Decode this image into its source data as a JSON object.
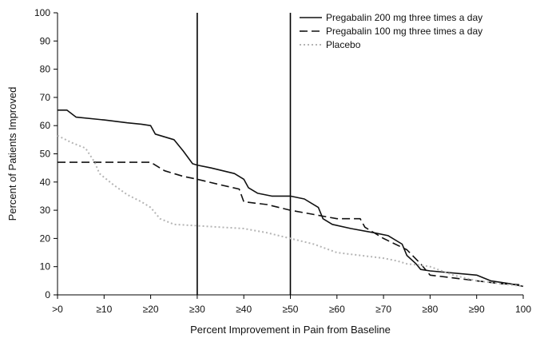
{
  "chart_data": {
    "type": "line",
    "xlabel": "Percent Improvement in Pain from Baseline",
    "ylabel": "Percent of Patients Improved",
    "xlim": [
      0,
      100
    ],
    "ylim": [
      0,
      100
    ],
    "grid": false,
    "legend_position": "top-right",
    "x_ticks": [
      {
        "value": 0,
        "label": ">0"
      },
      {
        "value": 10,
        "label": "≥10"
      },
      {
        "value": 20,
        "label": "≥20"
      },
      {
        "value": 30,
        "label": "≥30"
      },
      {
        "value": 40,
        "label": "≥40"
      },
      {
        "value": 50,
        "label": "≥50"
      },
      {
        "value": 60,
        "label": "≥60"
      },
      {
        "value": 70,
        "label": "≥70"
      },
      {
        "value": 80,
        "label": "≥80"
      },
      {
        "value": 90,
        "label": "≥90"
      },
      {
        "value": 100,
        "label": "100"
      }
    ],
    "y_ticks": [
      0,
      10,
      20,
      30,
      40,
      50,
      60,
      70,
      80,
      90,
      100
    ],
    "reference_lines_x": [
      30,
      50
    ],
    "series": [
      {
        "name": "Pregabalin 200 mg three times a day",
        "style": "solid",
        "color": "#111111",
        "x": [
          0,
          2,
          4,
          10,
          15,
          18,
          20,
          21,
          25,
          27,
          29,
          30,
          33,
          38,
          40,
          41,
          43,
          46,
          50,
          53,
          56,
          57,
          59,
          63,
          68,
          71,
          74,
          75,
          77,
          78,
          80,
          90,
          93,
          97,
          100
        ],
        "y": [
          65.5,
          65.5,
          63,
          62,
          61,
          60.5,
          60,
          57,
          55,
          51,
          46.5,
          46,
          45,
          43,
          41,
          38,
          36,
          35,
          35,
          34,
          31,
          27,
          25,
          23.5,
          22,
          21,
          18,
          14,
          11,
          9,
          8.5,
          7,
          5,
          4,
          3
        ]
      },
      {
        "name": "Pregabalin 100 mg three times a day",
        "style": "dashed",
        "color": "#111111",
        "x": [
          0,
          5,
          10,
          15,
          20,
          23,
          27,
          30,
          35,
          39,
          40,
          45,
          50,
          55,
          60,
          65,
          66,
          70,
          75,
          78,
          80,
          85,
          90,
          95,
          100
        ],
        "y": [
          47,
          47,
          47,
          47,
          47,
          44,
          42,
          41,
          39,
          37.5,
          33,
          32,
          30,
          28.5,
          27,
          27,
          24,
          20,
          16,
          11,
          7,
          6,
          5,
          4,
          3.5
        ]
      },
      {
        "name": "Placebo",
        "style": "dotted",
        "color": "#b5b5b5",
        "x": [
          0,
          3,
          6,
          8,
          9,
          12,
          15,
          18,
          20,
          22,
          25,
          30,
          35,
          40,
          45,
          50,
          55,
          60,
          65,
          70,
          73,
          75,
          78,
          80,
          85,
          90,
          95,
          100
        ],
        "y": [
          56.5,
          54,
          52,
          47,
          43,
          39,
          35.5,
          33,
          31,
          27,
          25,
          24.5,
          24,
          23.5,
          22,
          20,
          18,
          15,
          14,
          13,
          12,
          11,
          10.5,
          10,
          7,
          5,
          4,
          3
        ]
      }
    ]
  }
}
